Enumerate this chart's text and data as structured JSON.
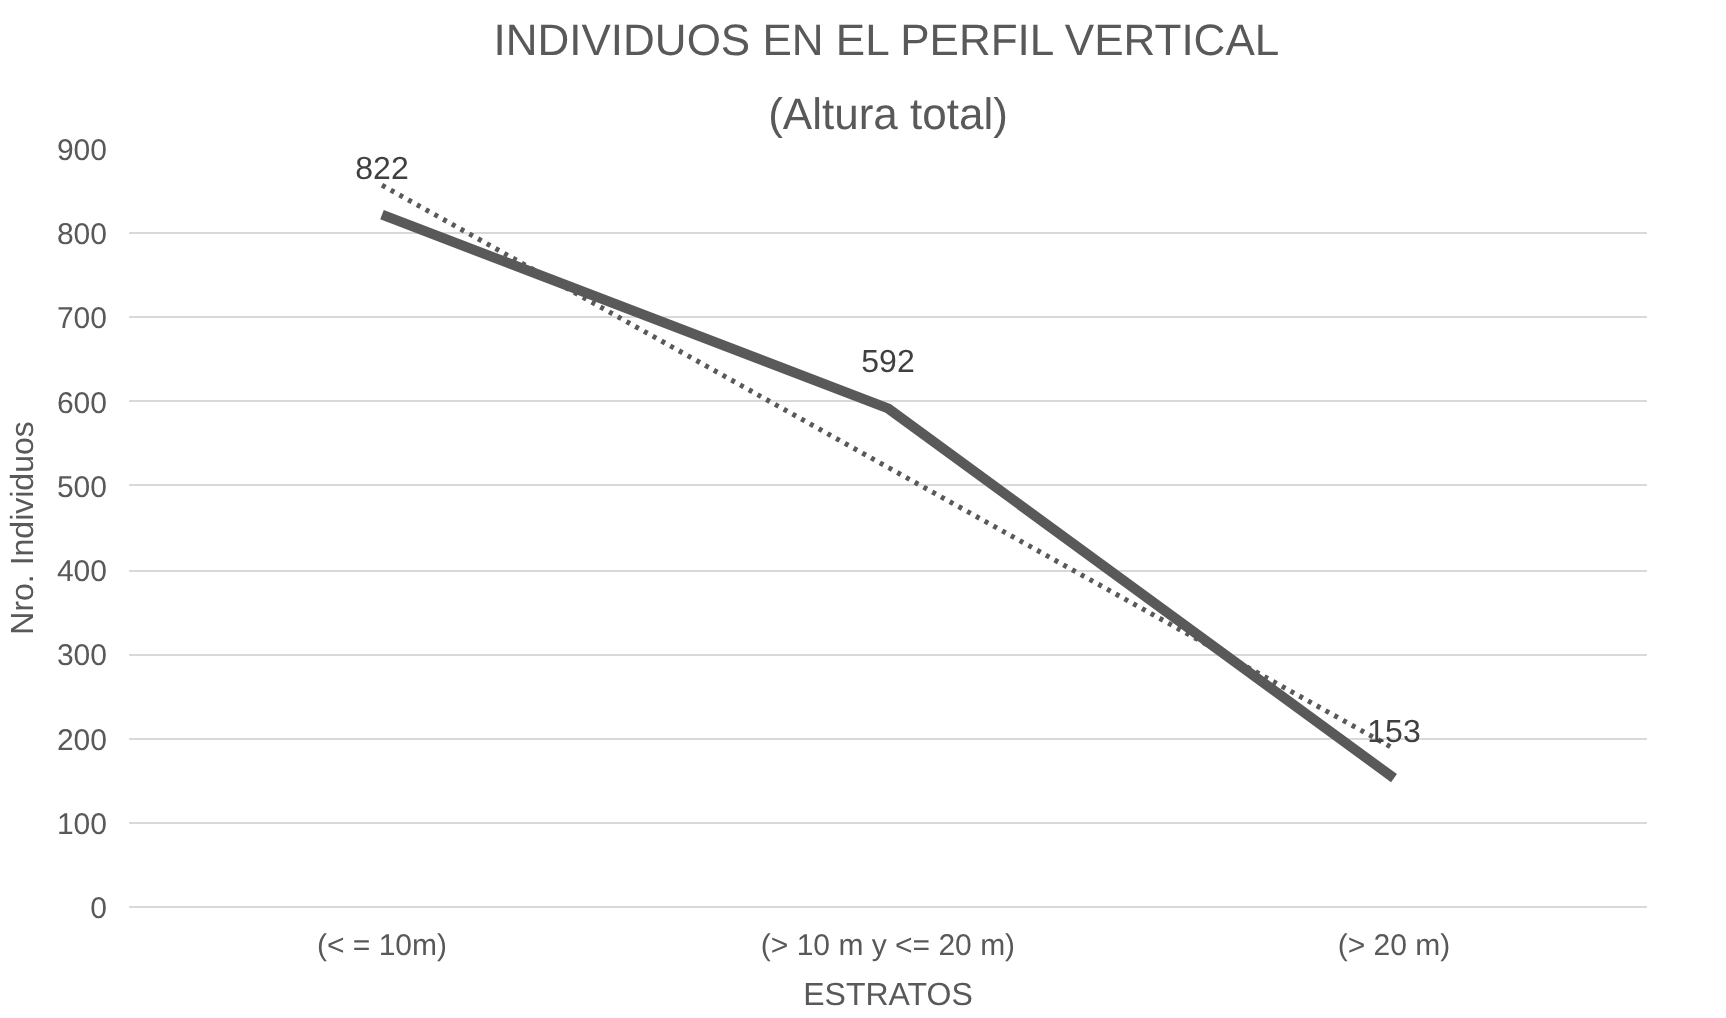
{
  "chart_data": {
    "type": "line",
    "title": "INDIVIDUOS EN EL PERFIL VERTICAL",
    "subtitle": "(Altura total)",
    "xlabel": "ESTRATOS",
    "ylabel": "Nro. Individuos",
    "categories": [
      "(< = 10m)",
      "(> 10 m y <= 20 m)",
      "(> 20 m)"
    ],
    "series": [
      {
        "color": "#595959",
        "values": [
          822,
          592,
          153
        ],
        "line_style": "solid"
      },
      {
        "type": "line",
        "color": "#595959",
        "values": [
          857,
          522,
          188
        ],
        "line_style": "dotted",
        "data_labels": false
      }
    ],
    "ylim": [
      0,
      900
    ],
    "yticks": [
      0,
      100,
      200,
      300,
      400,
      500,
      600,
      700,
      800,
      900
    ],
    "grid": "y",
    "marker": "none",
    "data_labels": true
  }
}
